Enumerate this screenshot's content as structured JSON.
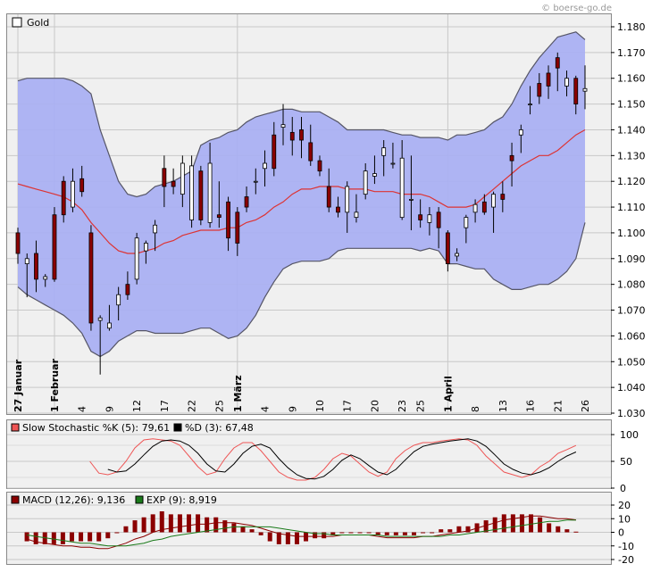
{
  "watermark": "© boerse-go.de",
  "main": {
    "legend_label": "Gold",
    "y_ticks": [
      "1.180",
      "1.170",
      "1.160",
      "1.150",
      "1.140",
      "1.130",
      "1.120",
      "1.110",
      "1.100",
      "1.090",
      "1.080",
      "1.070",
      "1.060",
      "1.050",
      "1.040",
      "1.030"
    ],
    "x_ticks": [
      {
        "label": "27 Januar",
        "index": 0,
        "vertical": true
      },
      {
        "label": "1 Februar",
        "index": 4,
        "vertical": true
      },
      {
        "label": "4",
        "index": 7
      },
      {
        "label": "9",
        "index": 10
      },
      {
        "label": "12",
        "index": 13
      },
      {
        "label": "17",
        "index": 16
      },
      {
        "label": "22",
        "index": 19
      },
      {
        "label": "25",
        "index": 22
      },
      {
        "label": "1 März",
        "index": 24,
        "vertical": true
      },
      {
        "label": "4",
        "index": 27
      },
      {
        "label": "9",
        "index": 30
      },
      {
        "label": "10",
        "index": 33
      },
      {
        "label": "17",
        "index": 36
      },
      {
        "label": "20",
        "index": 39
      },
      {
        "label": "23",
        "index": 42
      },
      {
        "label": "25",
        "index": 44
      },
      {
        "label": "1 April",
        "index": 47,
        "vertical": true
      },
      {
        "label": "8",
        "index": 50
      },
      {
        "label": "13",
        "index": 53
      },
      {
        "label": "16",
        "index": 56
      },
      {
        "label": "21",
        "index": 59
      },
      {
        "label": "26",
        "index": 62
      }
    ]
  },
  "stoch": {
    "legend_k": "Slow Stochastic %K (5): 79,61",
    "legend_d": "%D (3): 67,48",
    "y_ticks": [
      "100",
      "50",
      "0"
    ]
  },
  "macd": {
    "legend_macd": "MACD (12,26): 9,136",
    "legend_exp": "EXP (9): 8,919",
    "y_ticks": [
      "20",
      "10",
      "0",
      "-10",
      "-20"
    ]
  },
  "colors": {
    "band_fill": "#aab0f2",
    "band_line": "#555566",
    "ma_line": "#dd3333",
    "candle_down": "#8b0000",
    "candle_up": "#ffffff",
    "stoch_k": "#ee5555",
    "stoch_d": "#000000",
    "macd_bar": "#8b0000",
    "macd_line": "#8b0000",
    "exp_line": "#1a7a1a"
  },
  "chart_data": [
    {
      "type": "candlestick",
      "title": "Gold",
      "ylim": [
        1.03,
        1.18
      ],
      "ohlc": [
        [
          1.1,
          1.102,
          1.088,
          1.092
        ],
        [
          1.088,
          1.092,
          1.075,
          1.09
        ],
        [
          1.092,
          1.097,
          1.077,
          1.082
        ],
        [
          1.082,
          1.084,
          1.079,
          1.083
        ],
        [
          1.107,
          1.11,
          1.081,
          1.082
        ],
        [
          1.12,
          1.122,
          1.104,
          1.107
        ],
        [
          1.11,
          1.125,
          1.108,
          1.12
        ],
        [
          1.121,
          1.126,
          1.114,
          1.116
        ],
        [
          1.1,
          1.103,
          1.062,
          1.065
        ],
        [
          1.066,
          1.068,
          1.045,
          1.067
        ],
        [
          1.063,
          1.072,
          1.062,
          1.065
        ],
        [
          1.072,
          1.079,
          1.066,
          1.076
        ],
        [
          1.08,
          1.085,
          1.074,
          1.076
        ],
        [
          1.082,
          1.1,
          1.08,
          1.098
        ],
        [
          1.093,
          1.097,
          1.088,
          1.096
        ],
        [
          1.1,
          1.105,
          1.093,
          1.103
        ],
        [
          1.125,
          1.13,
          1.11,
          1.118
        ],
        [
          1.12,
          1.125,
          1.115,
          1.118
        ],
        [
          1.115,
          1.13,
          1.11,
          1.127
        ],
        [
          1.105,
          1.13,
          1.102,
          1.126
        ],
        [
          1.124,
          1.126,
          1.103,
          1.105
        ],
        [
          1.104,
          1.135,
          1.102,
          1.127
        ],
        [
          1.107,
          1.12,
          1.102,
          1.106
        ],
        [
          1.112,
          1.114,
          1.093,
          1.098
        ],
        [
          1.108,
          1.11,
          1.091,
          1.096
        ],
        [
          1.114,
          1.118,
          1.108,
          1.11
        ],
        [
          1.12,
          1.125,
          1.115,
          1.12
        ],
        [
          1.125,
          1.132,
          1.118,
          1.127
        ],
        [
          1.138,
          1.143,
          1.122,
          1.125
        ],
        [
          1.141,
          1.15,
          1.134,
          1.142
        ],
        [
          1.139,
          1.145,
          1.13,
          1.136
        ],
        [
          1.14,
          1.145,
          1.129,
          1.136
        ],
        [
          1.135,
          1.142,
          1.126,
          1.128
        ],
        [
          1.128,
          1.13,
          1.122,
          1.124
        ],
        [
          1.118,
          1.125,
          1.108,
          1.11
        ],
        [
          1.11,
          1.114,
          1.106,
          1.108
        ],
        [
          1.108,
          1.12,
          1.1,
          1.118
        ],
        [
          1.106,
          1.115,
          1.104,
          1.108
        ],
        [
          1.115,
          1.127,
          1.113,
          1.124
        ],
        [
          1.122,
          1.13,
          1.119,
          1.123
        ],
        [
          1.13,
          1.136,
          1.122,
          1.133
        ],
        [
          1.127,
          1.135,
          1.125,
          1.127
        ],
        [
          1.106,
          1.136,
          1.105,
          1.129
        ],
        [
          1.113,
          1.13,
          1.101,
          1.113
        ],
        [
          1.107,
          1.113,
          1.102,
          1.105
        ],
        [
          1.104,
          1.11,
          1.099,
          1.107
        ],
        [
          1.108,
          1.11,
          1.094,
          1.102
        ],
        [
          1.1,
          1.101,
          1.085,
          1.088
        ],
        [
          1.091,
          1.094,
          1.089,
          1.092
        ],
        [
          1.102,
          1.107,
          1.096,
          1.106
        ],
        [
          1.108,
          1.113,
          1.104,
          1.111
        ],
        [
          1.112,
          1.115,
          1.107,
          1.108
        ],
        [
          1.11,
          1.116,
          1.1,
          1.115
        ],
        [
          1.115,
          1.12,
          1.108,
          1.113
        ],
        [
          1.13,
          1.135,
          1.118,
          1.128
        ],
        [
          1.138,
          1.142,
          1.131,
          1.14
        ],
        [
          1.15,
          1.157,
          1.146,
          1.15
        ],
        [
          1.158,
          1.162,
          1.15,
          1.153
        ],
        [
          1.162,
          1.165,
          1.152,
          1.157
        ],
        [
          1.168,
          1.17,
          1.155,
          1.164
        ],
        [
          1.157,
          1.163,
          1.153,
          1.16
        ],
        [
          1.16,
          1.161,
          1.146,
          1.15
        ],
        [
          1.155,
          1.165,
          1.148,
          1.156
        ]
      ],
      "bollinger_upper": [
        1.159,
        1.16,
        1.16,
        1.16,
        1.16,
        1.16,
        1.159,
        1.157,
        1.154,
        1.14,
        1.13,
        1.12,
        1.115,
        1.114,
        1.115,
        1.118,
        1.119,
        1.12,
        1.122,
        1.124,
        1.134,
        1.136,
        1.137,
        1.139,
        1.14,
        1.143,
        1.145,
        1.146,
        1.147,
        1.148,
        1.148,
        1.147,
        1.147,
        1.147,
        1.145,
        1.143,
        1.14,
        1.14,
        1.14,
        1.14,
        1.14,
        1.139,
        1.138,
        1.138,
        1.137,
        1.137,
        1.137,
        1.136,
        1.138,
        1.138,
        1.139,
        1.14,
        1.143,
        1.145,
        1.15,
        1.157,
        1.163,
        1.168,
        1.172,
        1.176,
        1.177,
        1.178,
        1.175
      ],
      "bollinger_middle": [
        1.119,
        1.118,
        1.117,
        1.116,
        1.115,
        1.114,
        1.112,
        1.109,
        1.104,
        1.1,
        1.096,
        1.093,
        1.092,
        1.092,
        1.093,
        1.094,
        1.096,
        1.097,
        1.099,
        1.1,
        1.101,
        1.101,
        1.101,
        1.102,
        1.102,
        1.104,
        1.105,
        1.107,
        1.11,
        1.112,
        1.115,
        1.117,
        1.117,
        1.118,
        1.118,
        1.118,
        1.117,
        1.117,
        1.117,
        1.116,
        1.116,
        1.116,
        1.115,
        1.115,
        1.115,
        1.114,
        1.112,
        1.11,
        1.11,
        1.11,
        1.111,
        1.114,
        1.117,
        1.12,
        1.123,
        1.126,
        1.128,
        1.13,
        1.13,
        1.132,
        1.135,
        1.138,
        1.14
      ],
      "bollinger_lower": [
        1.079,
        1.076,
        1.074,
        1.072,
        1.07,
        1.068,
        1.065,
        1.061,
        1.054,
        1.052,
        1.054,
        1.058,
        1.06,
        1.062,
        1.062,
        1.061,
        1.061,
        1.061,
        1.061,
        1.062,
        1.063,
        1.063,
        1.061,
        1.059,
        1.06,
        1.063,
        1.068,
        1.075,
        1.081,
        1.086,
        1.088,
        1.089,
        1.089,
        1.089,
        1.09,
        1.093,
        1.094,
        1.094,
        1.094,
        1.094,
        1.094,
        1.094,
        1.094,
        1.094,
        1.093,
        1.094,
        1.093,
        1.088,
        1.088,
        1.087,
        1.086,
        1.086,
        1.082,
        1.08,
        1.078,
        1.078,
        1.079,
        1.08,
        1.08,
        1.082,
        1.085,
        1.09,
        1.104
      ]
    },
    {
      "type": "line",
      "title": "Slow Stochastic",
      "ylim": [
        0,
        100
      ],
      "series": [
        {
          "name": "Slow Stochastic %K (5)",
          "values": [
            null,
            null,
            null,
            null,
            null,
            null,
            null,
            50,
            28,
            25,
            30,
            50,
            75,
            90,
            92,
            90,
            88,
            80,
            60,
            40,
            25,
            30,
            55,
            75,
            85,
            85,
            70,
            50,
            30,
            20,
            15,
            15,
            20,
            35,
            55,
            65,
            60,
            45,
            30,
            22,
            30,
            55,
            70,
            80,
            85,
            85,
            88,
            90,
            92,
            90,
            80,
            60,
            45,
            30,
            25,
            20,
            25,
            40,
            50,
            65,
            72,
            79.61
          ]
        },
        {
          "name": "%D (3)",
          "values": [
            null,
            null,
            null,
            null,
            null,
            null,
            null,
            null,
            null,
            35,
            30,
            32,
            45,
            62,
            78,
            88,
            90,
            88,
            80,
            65,
            45,
            32,
            30,
            45,
            65,
            78,
            82,
            75,
            55,
            38,
            25,
            18,
            17,
            22,
            35,
            52,
            62,
            55,
            42,
            30,
            25,
            35,
            52,
            68,
            78,
            82,
            85,
            88,
            90,
            92,
            88,
            78,
            62,
            45,
            35,
            28,
            25,
            30,
            38,
            50,
            60,
            67.48
          ]
        }
      ]
    },
    {
      "type": "bar",
      "title": "MACD",
      "ylim": [
        -20,
        20
      ],
      "series": [
        {
          "name": "MACD (12,26)",
          "values": [
            -5,
            -7,
            -8,
            -9,
            -10,
            -10,
            -11,
            -11,
            -12,
            -12,
            -10,
            -8,
            -5,
            -3,
            0,
            2,
            3,
            4,
            5,
            6,
            6,
            7,
            7,
            7,
            6,
            5,
            3,
            1,
            -1,
            -2,
            -3,
            -3,
            -3,
            -3,
            -3,
            -2,
            -2,
            -2,
            -2,
            -3,
            -4,
            -4,
            -4,
            -4,
            -3,
            -3,
            -2,
            -1,
            0,
            1,
            3,
            5,
            7,
            9,
            10,
            11,
            12,
            12,
            11,
            10,
            10,
            9.136
          ]
        },
        {
          "name": "EXP (9)",
          "values": [
            -2,
            -3,
            -4,
            -5,
            -6,
            -7,
            -8,
            -8,
            -9,
            -10,
            -10,
            -10,
            -9,
            -8,
            -6,
            -5,
            -3,
            -2,
            -1,
            0,
            1,
            2,
            3,
            4,
            4,
            4,
            4,
            4,
            3,
            2,
            1,
            0,
            -1,
            -1,
            -2,
            -2,
            -2,
            -2,
            -2,
            -2,
            -3,
            -3,
            -3,
            -3,
            -3,
            -3,
            -3,
            -2,
            -2,
            -1,
            0,
            1,
            2,
            3,
            4,
            5,
            6,
            7,
            8,
            8,
            9,
            8.919
          ]
        }
      ]
    }
  ]
}
